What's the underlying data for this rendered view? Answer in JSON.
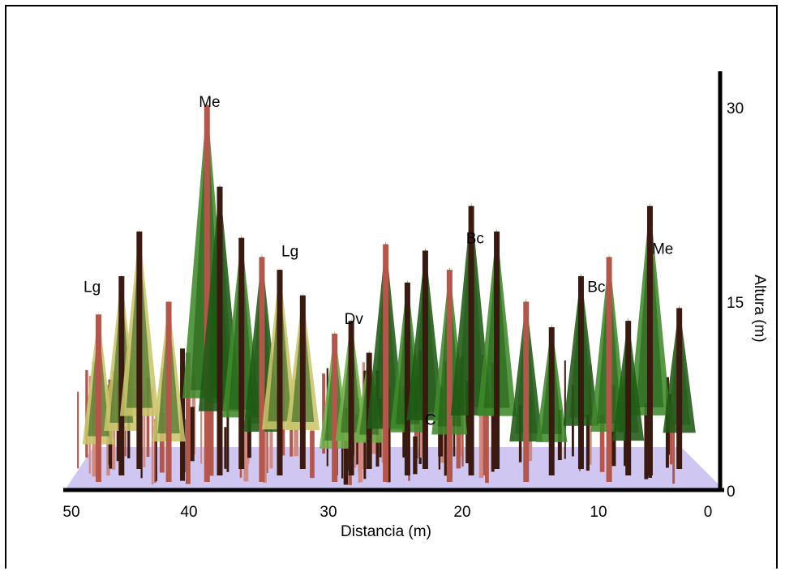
{
  "chart_data": {
    "type": "stand-profile",
    "xlabel": "Distancia (m)",
    "ylabel": "Altura (m)",
    "xlim": [
      50,
      0
    ],
    "ylim": [
      0,
      32
    ],
    "x_ticks": [
      "50",
      "40",
      "30",
      "20",
      "10",
      "0"
    ],
    "y_ticks": [
      "30",
      "15",
      "0"
    ],
    "species_labels": [
      {
        "text": "Me",
        "x": 39.3,
        "y": 30
      },
      {
        "text": "Lg",
        "x": 33.0,
        "y": 18.3
      },
      {
        "text": "Lg",
        "x": 48.5,
        "y": 15.5
      },
      {
        "text": "Bc",
        "x": 18.5,
        "y": 19.3
      },
      {
        "text": "Me",
        "x": 3.8,
        "y": 18.5
      },
      {
        "text": "Bc",
        "x": 9.0,
        "y": 15.5
      },
      {
        "text": "Dv",
        "x": 28.0,
        "y": 13.0
      },
      {
        "text": "C",
        "x": 22.0,
        "y": 5.1
      }
    ],
    "trees": [
      {
        "species": "Me",
        "x": 39.5,
        "h": 30.4
      },
      {
        "species": "Me",
        "x": 38.5,
        "h": 24
      },
      {
        "species": "Me",
        "x": 36.8,
        "h": 20
      },
      {
        "species": "Me",
        "x": 35.2,
        "h": 18.5
      },
      {
        "species": "Me",
        "x": 4.8,
        "h": 22.5
      },
      {
        "species": "Me",
        "x": 2.5,
        "h": 14.5
      },
      {
        "species": "Lg",
        "x": 48.0,
        "h": 14
      },
      {
        "species": "Lg",
        "x": 46.2,
        "h": 17
      },
      {
        "species": "Lg",
        "x": 44.8,
        "h": 20.5
      },
      {
        "species": "Lg",
        "x": 42.5,
        "h": 15
      },
      {
        "species": "Lg",
        "x": 33.8,
        "h": 17.5
      },
      {
        "species": "Lg",
        "x": 32.0,
        "h": 15.5
      },
      {
        "species": "Dv",
        "x": 29.5,
        "h": 12.5
      },
      {
        "species": "Dv",
        "x": 28.2,
        "h": 13.5
      },
      {
        "species": "Dv",
        "x": 26.8,
        "h": 11
      },
      {
        "species": "Bc",
        "x": 25.5,
        "h": 19.5
      },
      {
        "species": "Bc",
        "x": 23.8,
        "h": 16.5
      },
      {
        "species": "Bc",
        "x": 22.4,
        "h": 19
      },
      {
        "species": "Bc",
        "x": 20.5,
        "h": 17.5
      },
      {
        "species": "Bc",
        "x": 18.8,
        "h": 22.5
      },
      {
        "species": "Bc",
        "x": 16.8,
        "h": 20.5
      },
      {
        "species": "Bc",
        "x": 14.5,
        "h": 15
      },
      {
        "species": "Bc",
        "x": 12.5,
        "h": 13
      },
      {
        "species": "Bc",
        "x": 10.2,
        "h": 17
      },
      {
        "species": "Bc",
        "x": 8.0,
        "h": 18.5
      },
      {
        "species": "Bc",
        "x": 6.5,
        "h": 13.5
      }
    ]
  },
  "colors": {
    "ground": "#cfc7f2",
    "green_dark": "#1f5a14",
    "green_mid": "#3f8a2a",
    "green_light": "#6fae48",
    "yellow_green": "#c9c56a",
    "trunk_dark": "#3a1a10",
    "trunk_red": "#b4564a",
    "trunk_pink": "#d28a80"
  }
}
